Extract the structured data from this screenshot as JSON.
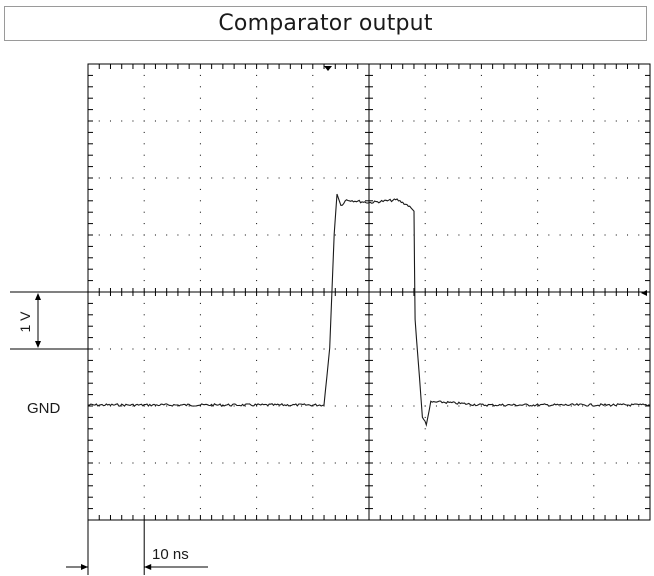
{
  "title": "Comparator output",
  "labels": {
    "gnd": "GND",
    "volt_scale": "1 V",
    "time_scale": "10 ns"
  },
  "colors": {
    "trace": "#1a1a1a",
    "grid": "#000000",
    "border": "#9a9a9a"
  },
  "chart_data": {
    "type": "line",
    "title": "Comparator output",
    "grid": true,
    "divisions": {
      "x": 10,
      "y": 8
    },
    "x_units_per_div": "10 ns",
    "y_units_per_div": "1 V",
    "xlim": [
      0,
      100
    ],
    "ylim": [
      -2,
      4
    ],
    "series": [
      {
        "x": [
          0,
          42,
          43,
          43.8,
          44.3,
          45,
          46,
          50,
          55,
          57,
          58,
          58.2,
          59.5,
          60.2,
          61,
          63,
          70,
          80,
          90,
          100
        ],
        "y": [
          0,
          0,
          1,
          3,
          3.7,
          3.5,
          3.6,
          3.55,
          3.6,
          3.5,
          3.4,
          1.5,
          -0.2,
          -0.35,
          0.05,
          0.05,
          0,
          0,
          0,
          0
        ]
      }
    ]
  }
}
